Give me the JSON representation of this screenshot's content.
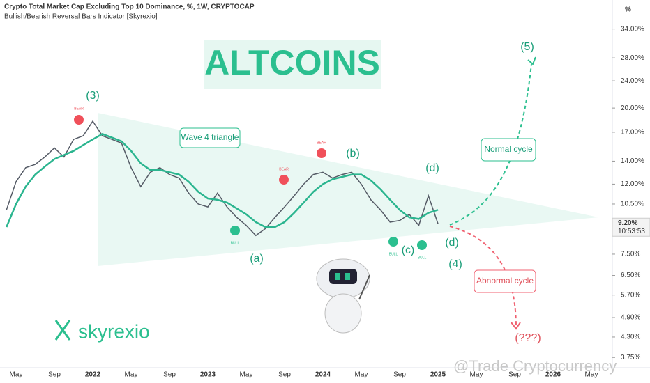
{
  "chart_data": {
    "type": "line",
    "title": "Crypto Total Market Cap Excluding Top 10 Dominance, %, 1W, CRYPTOCAP",
    "subtitle": "Bullish/Bearish Reversal Bars Indicator [Skyrexio]",
    "y_unit": "%",
    "log_scale": true,
    "categories": [
      null,
      "May",
      null,
      null,
      null,
      "Sep",
      null,
      null,
      null,
      "2022",
      null,
      null,
      null,
      "May",
      null,
      null,
      null,
      "Sep",
      null,
      null,
      null,
      "2023",
      null,
      null,
      null,
      "May",
      null,
      null,
      null,
      "Sep",
      null,
      null,
      null,
      "2024",
      null,
      null,
      null,
      "May",
      null,
      null,
      null,
      "Sep",
      null,
      null,
      null,
      "2025",
      null,
      null,
      null,
      "May",
      null,
      null,
      null,
      "Sep",
      null,
      null,
      null,
      "2026",
      null,
      null,
      null,
      "May",
      null
    ],
    "series": [
      {
        "color": "#555b66",
        "values": [
          10.1,
          12.2,
          13.4,
          13.7,
          14.4,
          15.3,
          14.4,
          16.2,
          16.6,
          18.3,
          16.6,
          16.2,
          15.8,
          13.4,
          11.8,
          13.0,
          13.4,
          12.8,
          12.5,
          11.3,
          10.5,
          10.3,
          11.3,
          10.3,
          9.6,
          9.1,
          8.5,
          8.9,
          9.6,
          10.3,
          11.1,
          12.0,
          12.8,
          13.0,
          12.5,
          12.8,
          13.0,
          12.0,
          10.8,
          10.1,
          9.3,
          9.4,
          9.8,
          9.1,
          11.1,
          9.2,
          null,
          null,
          null,
          null,
          null,
          null,
          null,
          null,
          null,
          null,
          null,
          null,
          null,
          null,
          null,
          null,
          null
        ]
      },
      {
        "color": "#2bb58f",
        "values": [
          9.0,
          10.5,
          11.8,
          12.8,
          13.5,
          14.2,
          14.6,
          15.0,
          15.6,
          16.2,
          16.8,
          16.4,
          16.0,
          15.0,
          13.8,
          13.2,
          13.2,
          13.0,
          12.8,
          12.2,
          11.4,
          10.9,
          10.8,
          10.6,
          10.2,
          9.8,
          9.3,
          9.0,
          9.0,
          9.3,
          9.9,
          10.6,
          11.4,
          12.0,
          12.4,
          12.6,
          12.8,
          12.8,
          12.3,
          11.6,
          10.8,
          10.1,
          9.6,
          9.5,
          9.9,
          10.1,
          null,
          null,
          null,
          null,
          null,
          null,
          null,
          null,
          null,
          null,
          null,
          null,
          null,
          null,
          null,
          null,
          null
        ]
      }
    ],
    "ylim": [
      3.5,
      41.3
    ],
    "yticks": [
      {
        "value": 34,
        "label": "34.00%"
      },
      {
        "value": 28,
        "label": "28.00%"
      },
      {
        "value": 24,
        "label": "24.00%"
      },
      {
        "value": 20,
        "label": "20.00%"
      },
      {
        "value": 17,
        "label": "17.00%"
      },
      {
        "value": 14,
        "label": "14.00%"
      },
      {
        "value": 12,
        "label": "12.00%"
      },
      {
        "value": 10.5,
        "label": "10.50%"
      },
      {
        "value": 7.5,
        "label": "7.50%"
      },
      {
        "value": 6.5,
        "label": "6.50%"
      },
      {
        "value": 5.7,
        "label": "5.70%"
      },
      {
        "value": 4.9,
        "label": "4.90%"
      },
      {
        "value": 4.3,
        "label": "4.30%"
      },
      {
        "value": 3.75,
        "label": "3.75%"
      }
    ],
    "last_price_label": "9.20%",
    "countdown": "10:53:53",
    "annotations": {
      "headline": "ALTCOINS",
      "wave3": "(3)",
      "wave_a": "(a)",
      "wave_b": "(b)",
      "wave_c": "(c)",
      "wave_d1": "(d)",
      "wave_d2": "(d)",
      "wave4": "(4)",
      "wave5": "(5)",
      "triangle": "Wave 4 triangle",
      "normal": "Normal cycle",
      "abnormal": "Abnormal cycle",
      "unknown": "(???)",
      "bear1": "BEAR",
      "bear2": "BEAR",
      "bear3": "BEAR",
      "bull1": "BULL",
      "bull2": "BULL",
      "bull3": "BULL",
      "brand": "skyrexio",
      "watermark": "@Trade Cryptocurrency"
    }
  }
}
